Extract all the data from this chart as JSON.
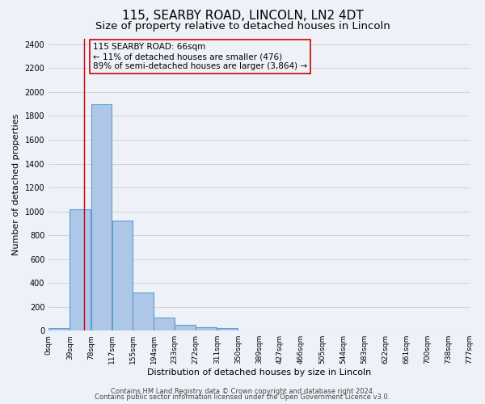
{
  "title": "115, SEARBY ROAD, LINCOLN, LN2 4DT",
  "subtitle": "Size of property relative to detached houses in Lincoln",
  "xlabel": "Distribution of detached houses by size in Lincoln",
  "ylabel": "Number of detached properties",
  "footer_lines": [
    "Contains HM Land Registry data © Crown copyright and database right 2024.",
    "Contains public sector information licensed under the Open Government Licence v3.0."
  ],
  "bin_labels": [
    "0sqm",
    "39sqm",
    "78sqm",
    "117sqm",
    "155sqm",
    "194sqm",
    "233sqm",
    "272sqm",
    "311sqm",
    "350sqm",
    "389sqm",
    "427sqm",
    "466sqm",
    "505sqm",
    "544sqm",
    "583sqm",
    "622sqm",
    "661sqm",
    "700sqm",
    "738sqm",
    "777sqm"
  ],
  "bin_edges": [
    0,
    39,
    78,
    117,
    155,
    194,
    233,
    272,
    311,
    350,
    389,
    427,
    466,
    505,
    544,
    583,
    622,
    661,
    700,
    738,
    777
  ],
  "bar_heights": [
    25,
    1020,
    1900,
    920,
    320,
    110,
    50,
    30,
    20,
    0,
    0,
    0,
    0,
    0,
    0,
    0,
    0,
    0,
    0,
    0
  ],
  "bar_color": "#aec6e8",
  "bar_edgecolor": "#5a9fd4",
  "bar_linewidth": 0.8,
  "property_line_x": 66,
  "annotation_line1": "115 SEARBY ROAD: 66sqm",
  "annotation_line2": "← 11% of detached houses are smaller (476)",
  "annotation_line3": "89% of semi-detached houses are larger (3,864) →",
  "red_line_color": "#cc0000",
  "annotation_box_edgecolor": "#cc0000",
  "ylim": [
    0,
    2450
  ],
  "yticks": [
    0,
    200,
    400,
    600,
    800,
    1000,
    1200,
    1400,
    1600,
    1800,
    2000,
    2200,
    2400
  ],
  "grid_color": "#cccccc",
  "bg_color": "#eef2f8",
  "title_fontsize": 11,
  "subtitle_fontsize": 9.5,
  "axis_label_fontsize": 8,
  "tick_fontsize": 7,
  "annotation_fontsize": 7.5,
  "footer_fontsize": 6
}
